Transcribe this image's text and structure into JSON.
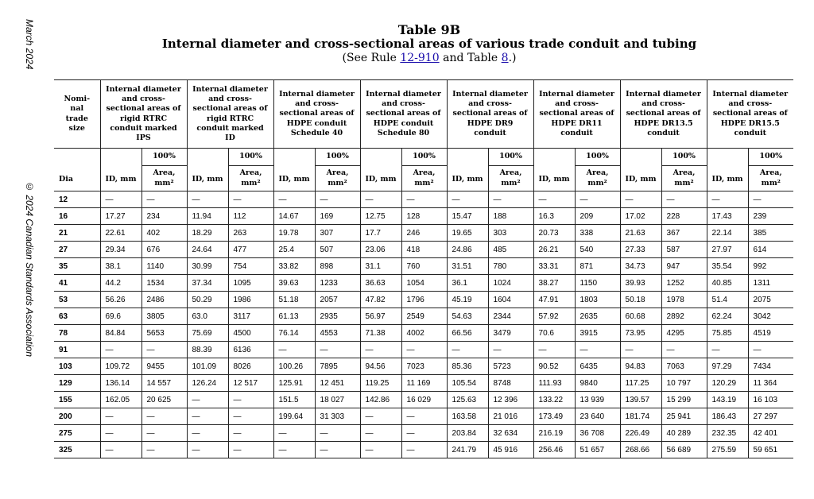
{
  "margin": {
    "date": "March 2024",
    "copyright": "© 2024 Canadian Standards Association"
  },
  "header": {
    "title": "Table 9B",
    "subtitle": "Internal diameter and cross-sectional areas of various trade conduit and tubing",
    "ref_prefix": "(See Rule ",
    "ref_rule": "12-910",
    "ref_mid": " and Table ",
    "ref_table": "8",
    "ref_suffix": ".)"
  },
  "table": {
    "nominal_header": "Nomi-nal trade size",
    "dia_header": "Dia",
    "id_header": "ID, mm",
    "pct_header": "100%",
    "area_header": "Area, mm²",
    "groups": [
      "Internal diameter and cross-sectional areas of rigid RTRC conduit marked IPS",
      "Internal diameter and cross-sectional areas of rigid RTRC conduit marked ID",
      "Internal diameter and cross-sectional areas of HDPE conduit Schedule 40",
      "Internal diameter and cross-sectional areas of HDPE conduit Schedule 80",
      "Internal diameter and cross-sectional areas of HDPE DR9 conduit",
      "Internal diameter and cross-sectional areas of HDPE DR11 conduit",
      "Internal diameter and cross-sectional areas of HDPE DR13.5 conduit",
      "Internal diameter and cross-sectional areas of HDPE DR15.5 conduit"
    ],
    "rows": [
      [
        "12",
        "—",
        "—",
        "—",
        "—",
        "—",
        "—",
        "—",
        "—",
        "—",
        "—",
        "—",
        "—",
        "—",
        "—",
        "—",
        "—"
      ],
      [
        "16",
        "17.27",
        "234",
        "11.94",
        "112",
        "14.67",
        "169",
        "12.75",
        "128",
        "15.47",
        "188",
        "16.3",
        "209",
        "17.02",
        "228",
        "17.43",
        "239"
      ],
      [
        "21",
        "22.61",
        "402",
        "18.29",
        "263",
        "19.78",
        "307",
        "17.7",
        "246",
        "19.65",
        "303",
        "20.73",
        "338",
        "21.63",
        "367",
        "22.14",
        "385"
      ],
      [
        "27",
        "29.34",
        "676",
        "24.64",
        "477",
        "25.4",
        "507",
        "23.06",
        "418",
        "24.86",
        "485",
        "26.21",
        "540",
        "27.33",
        "587",
        "27.97",
        "614"
      ],
      [
        "35",
        "38.1",
        "1140",
        "30.99",
        "754",
        "33.82",
        "898",
        "31.1",
        "760",
        "31.51",
        "780",
        "33.31",
        "871",
        "34.73",
        "947",
        "35.54",
        "992"
      ],
      [
        "41",
        "44.2",
        "1534",
        "37.34",
        "1095",
        "39.63",
        "1233",
        "36.63",
        "1054",
        "36.1",
        "1024",
        "38.27",
        "1150",
        "39.93",
        "1252",
        "40.85",
        "1311"
      ],
      [
        "53",
        "56.26",
        "2486",
        "50.29",
        "1986",
        "51.18",
        "2057",
        "47.82",
        "1796",
        "45.19",
        "1604",
        "47.91",
        "1803",
        "50.18",
        "1978",
        "51.4",
        "2075"
      ],
      [
        "63",
        "69.6",
        "3805",
        "63.0",
        "3117",
        "61.13",
        "2935",
        "56.97",
        "2549",
        "54.63",
        "2344",
        "57.92",
        "2635",
        "60.68",
        "2892",
        "62.24",
        "3042"
      ],
      [
        "78",
        "84.84",
        "5653",
        "75.69",
        "4500",
        "76.14",
        "4553",
        "71.38",
        "4002",
        "66.56",
        "3479",
        "70.6",
        "3915",
        "73.95",
        "4295",
        "75.85",
        "4519"
      ],
      [
        "91",
        "—",
        "—",
        "88.39",
        "6136",
        "—",
        "—",
        "—",
        "—",
        "—",
        "—",
        "—",
        "—",
        "—",
        "—",
        "—",
        "—"
      ],
      [
        "103",
        "109.72",
        "9455",
        "101.09",
        "8026",
        "100.26",
        "7895",
        "94.56",
        "7023",
        "85.36",
        "5723",
        "90.52",
        "6435",
        "94.83",
        "7063",
        "97.29",
        "7434"
      ],
      [
        "129",
        "136.14",
        "14 557",
        "126.24",
        "12 517",
        "125.91",
        "12 451",
        "119.25",
        "11 169",
        "105.54",
        "8748",
        "111.93",
        "9840",
        "117.25",
        "10 797",
        "120.29",
        "11 364"
      ],
      [
        "155",
        "162.05",
        "20 625",
        "—",
        "—",
        "151.5",
        "18 027",
        "142.86",
        "16 029",
        "125.63",
        "12 396",
        "133.22",
        "13 939",
        "139.57",
        "15 299",
        "143.19",
        "16 103"
      ],
      [
        "200",
        "—",
        "—",
        "—",
        "—",
        "199.64",
        "31 303",
        "—",
        "—",
        "163.58",
        "21 016",
        "173.49",
        "23 640",
        "181.74",
        "25 941",
        "186.43",
        "27 297"
      ],
      [
        "275",
        "—",
        "—",
        "—",
        "—",
        "—",
        "—",
        "—",
        "—",
        "203.84",
        "32 634",
        "216.19",
        "36 708",
        "226.49",
        "40 289",
        "232.35",
        "42 401"
      ],
      [
        "325",
        "—",
        "—",
        "—",
        "—",
        "—",
        "—",
        "—",
        "—",
        "241.79",
        "45 916",
        "256.46",
        "51 657",
        "268.66",
        "56 689",
        "275.59",
        "59 651"
      ]
    ]
  }
}
